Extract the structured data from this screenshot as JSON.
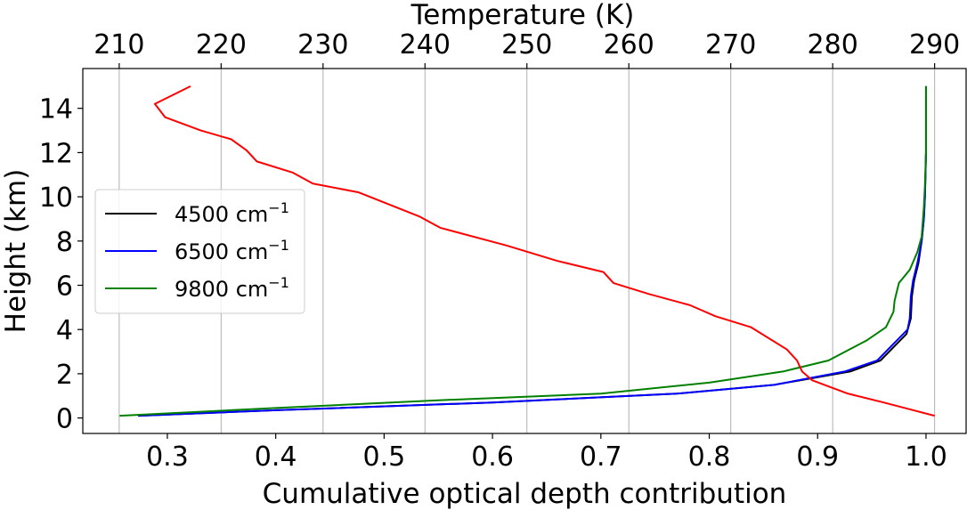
{
  "chart_data": {
    "type": "line",
    "title": "",
    "xlabel": "Cumulative optical depth contribution",
    "ylabel": "Height (km)",
    "x2label": "Temperature (K)",
    "xlim": [
      0.222,
      1.037
    ],
    "ylim": [
      -0.7,
      15.8
    ],
    "x2lim": [
      206.43,
      293.09
    ],
    "xticks": [
      "0.3",
      "0.4",
      "0.5",
      "0.6",
      "0.7",
      "0.8",
      "0.9",
      "1.0"
    ],
    "yticks": [
      "0",
      "2",
      "4",
      "6",
      "8",
      "10",
      "12",
      "14"
    ],
    "x2ticks": [
      "210",
      "220",
      "230",
      "240",
      "250",
      "260",
      "270",
      "280",
      "290"
    ],
    "grid": "vertical lines at top-axis ticks",
    "legend_position": "center-left",
    "series": [
      {
        "name": "4500 cm",
        "name_sup": "−1",
        "color": "#000000",
        "axis": "bottom",
        "points": [
          [
            0.273,
            0.1
          ],
          [
            0.4,
            0.35
          ],
          [
            0.6,
            0.7
          ],
          [
            0.77,
            1.1
          ],
          [
            0.86,
            1.5
          ],
          [
            0.93,
            2.1
          ],
          [
            0.958,
            2.6
          ],
          [
            0.982,
            3.8
          ],
          [
            0.986,
            4.5
          ],
          [
            0.987,
            5.5
          ],
          [
            0.989,
            6.2
          ],
          [
            0.993,
            7.0
          ],
          [
            0.996,
            8.0
          ],
          [
            0.998,
            9.0
          ],
          [
            0.999,
            10.0
          ],
          [
            1.0,
            12.0
          ],
          [
            1.0,
            15.0
          ]
        ]
      },
      {
        "name": "6500 cm",
        "name_sup": "−1",
        "color": "#0000ff",
        "axis": "bottom",
        "points": [
          [
            0.274,
            0.1
          ],
          [
            0.4,
            0.35
          ],
          [
            0.6,
            0.7
          ],
          [
            0.77,
            1.1
          ],
          [
            0.86,
            1.5
          ],
          [
            0.925,
            2.1
          ],
          [
            0.955,
            2.6
          ],
          [
            0.983,
            4.0
          ],
          [
            0.985,
            4.5
          ],
          [
            0.986,
            5.5
          ],
          [
            0.988,
            6.2
          ],
          [
            0.992,
            7.0
          ],
          [
            0.996,
            8.0
          ],
          [
            0.998,
            9.0
          ],
          [
            0.999,
            10.0
          ],
          [
            1.0,
            12.0
          ],
          [
            1.0,
            15.0
          ]
        ]
      },
      {
        "name": "9800 cm",
        "name_sup": "−1",
        "color": "#008000",
        "axis": "bottom",
        "points": [
          [
            0.256,
            0.1
          ],
          [
            0.4,
            0.45
          ],
          [
            0.55,
            0.8
          ],
          [
            0.7,
            1.1
          ],
          [
            0.8,
            1.6
          ],
          [
            0.868,
            2.1
          ],
          [
            0.91,
            2.6
          ],
          [
            0.945,
            3.5
          ],
          [
            0.963,
            4.1
          ],
          [
            0.97,
            4.8
          ],
          [
            0.971,
            5.3
          ],
          [
            0.975,
            6.1
          ],
          [
            0.985,
            6.7
          ],
          [
            0.992,
            7.5
          ],
          [
            0.996,
            8.2
          ],
          [
            0.998,
            9.5
          ],
          [
            0.999,
            10.5
          ],
          [
            1.0,
            12.0
          ],
          [
            1.0,
            15.0
          ]
        ]
      },
      {
        "name": "",
        "color": "#ff0000",
        "axis": "top",
        "points": [
          [
            217.0,
            15.0
          ],
          [
            213.5,
            14.2
          ],
          [
            214.5,
            13.6
          ],
          [
            218.0,
            13.0
          ],
          [
            221.0,
            12.6
          ],
          [
            222.5,
            12.1
          ],
          [
            223.5,
            11.6
          ],
          [
            227.0,
            11.1
          ],
          [
            229.0,
            10.6
          ],
          [
            233.5,
            10.2
          ],
          [
            239.5,
            9.1
          ],
          [
            241.5,
            8.6
          ],
          [
            248.0,
            7.8
          ],
          [
            253.0,
            7.1
          ],
          [
            257.5,
            6.6
          ],
          [
            258.5,
            6.1
          ],
          [
            262.0,
            5.6
          ],
          [
            266.0,
            5.1
          ],
          [
            268.5,
            4.6
          ],
          [
            272.0,
            4.1
          ],
          [
            275.5,
            3.1
          ],
          [
            276.5,
            2.6
          ],
          [
            277.0,
            2.1
          ],
          [
            278.0,
            1.7
          ],
          [
            281.5,
            1.1
          ],
          [
            285.0,
            0.7
          ],
          [
            290.0,
            0.1
          ]
        ]
      }
    ]
  }
}
